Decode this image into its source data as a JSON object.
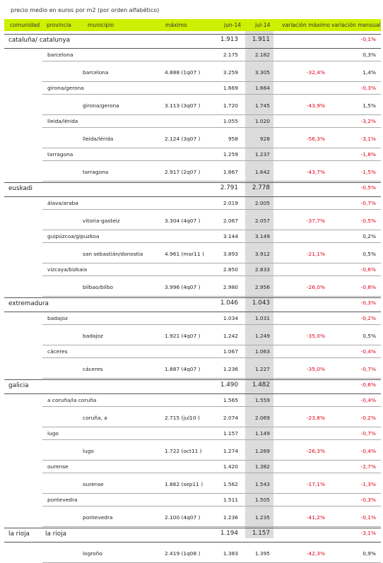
{
  "caption": "precio medio en euros por m2 (por orden alfabético)",
  "header": {
    "comunidad": "comunidad",
    "provincia": "provincia",
    "municipio": "municipio",
    "maximo": "máximo",
    "jun": "jun-14",
    "jul": "jul-14",
    "var_max": "variación máximo",
    "var_mens": "variación mensual"
  },
  "rows": [
    {
      "kind": "region",
      "comunidad": "cataluña/ catalunya",
      "jun": "1.913",
      "jul": "1.911",
      "var_max": "",
      "var_mens": "-0,1%",
      "mens_neg": true
    },
    {
      "kind": "prov",
      "provincia": "barcelona",
      "jun": "2.175",
      "jul": "2.182",
      "var_mens": "0,3%",
      "mens_neg": false
    },
    {
      "kind": "muni",
      "municipio": "barcelona",
      "maximo": "4.888 (1q07 )",
      "jun": "3.259",
      "jul": "3.305",
      "var_max": "-32,4%",
      "var_mens": "1,4%",
      "mens_neg": false
    },
    {
      "kind": "prov",
      "provincia": "girona/gerona",
      "jun": "1.669",
      "jul": "1.664",
      "var_mens": "-0,3%",
      "mens_neg": true
    },
    {
      "kind": "muni",
      "municipio": "girona/gerona",
      "maximo": "3.113 (3q07 )",
      "jun": "1.720",
      "jul": "1.745",
      "var_max": "-43,9%",
      "var_mens": "1,5%",
      "mens_neg": false
    },
    {
      "kind": "prov",
      "provincia": "lleida/lérida",
      "jun": "1.055",
      "jul": "1.020",
      "var_mens": "-3,2%",
      "mens_neg": true
    },
    {
      "kind": "muni",
      "municipio": "lleida/lérida",
      "maximo": "2.124 (3q07 )",
      "jun": "958",
      "jul": "928",
      "var_max": "-56,3%",
      "var_mens": "-3,1%",
      "mens_neg": true
    },
    {
      "kind": "prov",
      "provincia": "tarragona",
      "jun": "1.259",
      "jul": "1.237",
      "var_mens": "-1,8%",
      "mens_neg": true
    },
    {
      "kind": "muni",
      "municipio": "tarragona",
      "maximo": "2.917 (2q07 )",
      "jun": "1.667",
      "jul": "1.642",
      "var_max": "-43,7%",
      "var_mens": "-1,5%",
      "mens_neg": true
    },
    {
      "kind": "region",
      "comunidad": "euskadi",
      "jun": "2.791",
      "jul": "2.778",
      "var_max": "",
      "var_mens": "-0,5%",
      "mens_neg": true
    },
    {
      "kind": "prov",
      "provincia": "álava/araba",
      "jun": "2.019",
      "jul": "2.005",
      "var_mens": "-0,7%",
      "mens_neg": true
    },
    {
      "kind": "muni",
      "municipio": "vitoria-gasteiz",
      "maximo": "3.304 (4q07 )",
      "jun": "2.067",
      "jul": "2.057",
      "var_max": "-37,7%",
      "var_mens": "-0,5%",
      "mens_neg": true
    },
    {
      "kind": "prov",
      "provincia": "guipúzcoa/gipuzkoa",
      "jun": "3.144",
      "jul": "3.149",
      "var_mens": "0,2%",
      "mens_neg": false
    },
    {
      "kind": "muni",
      "municipio": "san sebastián/donostia",
      "maximo": "4.961 (mar11 )",
      "jun": "3.893",
      "jul": "3.912",
      "var_max": "-21,1%",
      "var_mens": "0,5%",
      "mens_neg": false
    },
    {
      "kind": "prov",
      "provincia": "vizcaya/bizkaia",
      "jun": "2.850",
      "jul": "2.833",
      "var_mens": "-0,6%",
      "mens_neg": true
    },
    {
      "kind": "muni",
      "municipio": "bilbao/bilbo",
      "maximo": "3.996 (4q07 )",
      "jun": "2.980",
      "jul": "2.956",
      "var_max": "-26,0%",
      "var_mens": "-0,8%",
      "mens_neg": true
    },
    {
      "kind": "region",
      "comunidad": "extremadura",
      "jun": "1.046",
      "jul": "1.043",
      "var_max": "",
      "var_mens": "-0,3%",
      "mens_neg": true
    },
    {
      "kind": "prov",
      "provincia": "badajoz",
      "jun": "1.034",
      "jul": "1.031",
      "var_mens": "-0,2%",
      "mens_neg": true
    },
    {
      "kind": "muni",
      "municipio": "badajoz",
      "maximo": "1.921 (4q07 )",
      "jun": "1.242",
      "jul": "1.249",
      "var_max": "-35,0%",
      "var_mens": "0,5%",
      "mens_neg": false
    },
    {
      "kind": "prov",
      "provincia": "cáceres",
      "jun": "1.067",
      "jul": "1.063",
      "var_mens": "-0,4%",
      "mens_neg": true
    },
    {
      "kind": "muni",
      "municipio": "cáceres",
      "maximo": "1.887 (4q07 )",
      "jun": "1.236",
      "jul": "1.227",
      "var_max": "-35,0%",
      "var_mens": "-0,7%",
      "mens_neg": true
    },
    {
      "kind": "region",
      "comunidad": "galicia",
      "jun": "1.490",
      "jul": "1.482",
      "var_max": "",
      "var_mens": "-0,6%",
      "mens_neg": true
    },
    {
      "kind": "prov",
      "provincia": "a coruña/la coruña",
      "jun": "1.565",
      "jul": "1.559",
      "var_mens": "-0,4%",
      "mens_neg": true
    },
    {
      "kind": "muni",
      "municipio": "coruña, a",
      "maximo": "2.715 (jul10 )",
      "jun": "2.074",
      "jul": "2.069",
      "var_max": "-23,8%",
      "var_mens": "-0,2%",
      "mens_neg": true
    },
    {
      "kind": "prov",
      "provincia": "lugo",
      "jun": "1.157",
      "jul": "1.149",
      "var_mens": "-0,7%",
      "mens_neg": true
    },
    {
      "kind": "muni",
      "municipio": "lugo",
      "maximo": "1.722 (oct11 )",
      "jun": "1.274",
      "jul": "1.269",
      "var_max": "-26,3%",
      "var_mens": "-0,4%",
      "mens_neg": true
    },
    {
      "kind": "prov",
      "provincia": "ourense",
      "jun": "1.420",
      "jul": "1.382",
      "var_mens": "-2,7%",
      "mens_neg": true
    },
    {
      "kind": "muni",
      "municipio": "ourense",
      "maximo": "1.862 (sep11 )",
      "jun": "1.562",
      "jul": "1.543",
      "var_max": "-17,1%",
      "var_mens": "-1,3%",
      "mens_neg": true
    },
    {
      "kind": "prov",
      "provincia": "pontevedra",
      "jun": "1.511",
      "jul": "1.505",
      "var_mens": "-0,3%",
      "mens_neg": true
    },
    {
      "kind": "muni",
      "municipio": "pontevedra",
      "maximo": "2.100 (4q07 )",
      "jun": "1.236",
      "jul": "1.235",
      "var_max": "-41,2%",
      "var_mens": "-0,1%",
      "mens_neg": true
    },
    {
      "kind": "region",
      "comunidad": "la rioja",
      "provincia": "la rioja",
      "jun": "1.194",
      "jul": "1.157",
      "var_max": "",
      "var_mens": "-3,1%",
      "mens_neg": true
    },
    {
      "kind": "muni",
      "municipio": "logroño",
      "maximo": "2.419 (1q08 )",
      "jun": "1.383",
      "jul": "1.395",
      "var_max": "-42,3%",
      "var_mens": "0,9%",
      "mens_neg": false
    }
  ]
}
